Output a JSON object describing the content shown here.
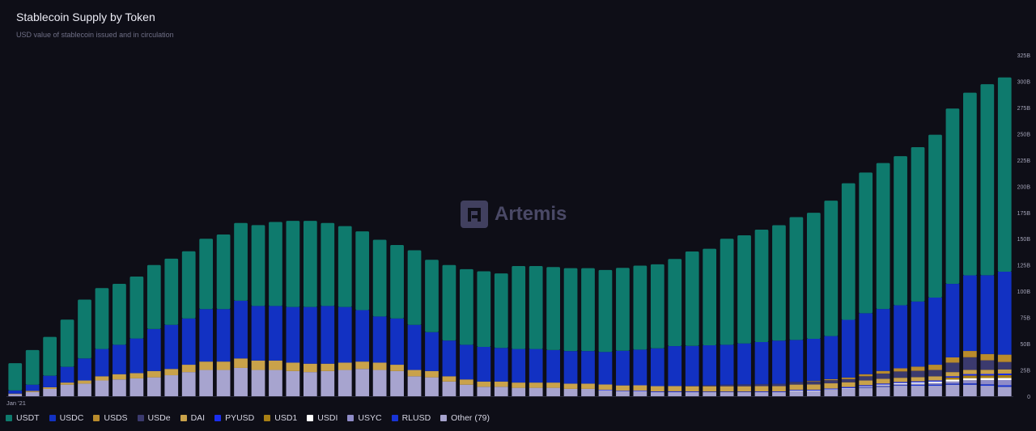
{
  "header": {
    "title": "Stablecoin Supply by Token",
    "subtitle": "USD value of stablecoin issued and in circulation"
  },
  "watermark": {
    "text": "Artemis"
  },
  "chart_data": {
    "type": "bar",
    "stacked": true,
    "ylim": [
      0,
      325
    ],
    "yunit": "B",
    "yticks": [
      "0",
      "25B",
      "50B",
      "75B",
      "100B",
      "125B",
      "150B",
      "175B",
      "200B",
      "225B",
      "250B",
      "275B",
      "300B",
      "325B"
    ],
    "ytick_values": [
      0,
      25,
      50,
      75,
      100,
      125,
      150,
      175,
      200,
      225,
      250,
      275,
      300,
      325
    ],
    "first_x_label": "Jan '21",
    "num_bars": 58,
    "grid": false,
    "legend_position": "bottom",
    "series": [
      {
        "name": "Other (79)",
        "color": "#a7a4cf",
        "values": [
          2,
          4,
          7,
          11,
          12,
          15,
          16,
          17,
          18,
          20,
          23,
          25,
          25,
          27,
          25,
          25,
          24,
          23,
          24,
          25,
          26,
          25,
          24,
          19,
          18,
          14,
          11,
          9,
          9,
          8,
          8,
          8,
          7,
          7,
          6,
          5,
          5,
          4,
          4,
          4,
          4,
          4,
          4,
          4,
          4,
          5,
          5,
          6,
          7,
          8,
          9,
          10,
          10,
          10,
          11,
          11,
          10,
          9
        ]
      },
      {
        "name": "RLUSD",
        "color": "#1834d6",
        "values": [
          0,
          0,
          0,
          0,
          0,
          0,
          0,
          0,
          0,
          0,
          0,
          0,
          0,
          0,
          0,
          0,
          0,
          0,
          0,
          0,
          0,
          0,
          0,
          0,
          0,
          0,
          0,
          0,
          0,
          0,
          0,
          0,
          0,
          0,
          0,
          0,
          0,
          0,
          0,
          0,
          0,
          0,
          0,
          0,
          0,
          0,
          0,
          0,
          0,
          0.3,
          0.5,
          0.6,
          0.8,
          1,
          1,
          1.2,
          1.3,
          1.4
        ]
      },
      {
        "name": "USYC",
        "color": "#8f8cc8",
        "values": [
          0,
          0,
          0,
          0,
          0,
          0,
          0,
          0,
          0,
          0,
          0,
          0,
          0,
          0,
          0,
          0,
          0,
          0,
          0,
          0,
          0,
          0,
          0,
          0,
          0,
          0,
          0,
          0,
          0,
          0,
          0,
          0,
          0,
          0,
          0,
          0,
          0,
          0,
          0,
          0,
          0,
          0,
          0,
          0,
          0,
          0,
          0,
          0,
          0.3,
          0.6,
          0.8,
          1,
          1.2,
          1.5,
          2,
          3,
          4,
          5
        ]
      },
      {
        "name": "USDI",
        "color": "#ffffff",
        "values": [
          0,
          0,
          0,
          0,
          0,
          0,
          0,
          0,
          0,
          0,
          0,
          0,
          0,
          0,
          0,
          0,
          0,
          0,
          0,
          0,
          0,
          0,
          0,
          0,
          0,
          0,
          0,
          0,
          0,
          0,
          0,
          0,
          0,
          0,
          0,
          0,
          0,
          0,
          0,
          0,
          0,
          0,
          0,
          0,
          0,
          0.5,
          0.5,
          0.5,
          0.5,
          0.6,
          0.8,
          1,
          1.2,
          1.5,
          1.8,
          2,
          2,
          2
        ]
      },
      {
        "name": "USD1",
        "color": "#a87f14",
        "values": [
          0,
          0,
          0,
          0,
          0,
          0,
          0,
          0,
          0,
          0,
          0,
          0,
          0,
          0,
          0,
          0,
          0,
          0,
          0,
          0,
          0,
          0,
          0,
          0,
          0,
          0,
          0,
          0,
          0,
          0,
          0,
          0,
          0,
          0,
          0,
          0,
          0,
          0,
          0,
          0,
          0,
          0,
          0,
          0,
          0,
          0,
          0,
          0,
          0,
          0,
          0,
          0,
          0,
          0,
          2,
          2.5,
          2.5,
          2.7
        ]
      },
      {
        "name": "PYUSD",
        "color": "#1a2ef0",
        "values": [
          0,
          0,
          0,
          0,
          0,
          0,
          0,
          0,
          0,
          0,
          0,
          0,
          0,
          0,
          0,
          0,
          0,
          0,
          0,
          0,
          0,
          0,
          0,
          0,
          0,
          0,
          0,
          0,
          0,
          0,
          0,
          0,
          0,
          0,
          0.2,
          0.3,
          0.4,
          0.6,
          0.7,
          0.6,
          0.5,
          0.5,
          0.5,
          0.6,
          0.6,
          0.6,
          0.7,
          0.8,
          1,
          1,
          1,
          1,
          1,
          1,
          1.2,
          1.4,
          1.4,
          1.5
        ]
      },
      {
        "name": "DAI",
        "color": "#c9a24a",
        "values": [
          0.5,
          1,
          1.5,
          2,
          3,
          4,
          5,
          5,
          6,
          6,
          7,
          8,
          8,
          9,
          9,
          9,
          8,
          8,
          7,
          7,
          7,
          7,
          6,
          6,
          6,
          5,
          5,
          5,
          5,
          5,
          5,
          5,
          5,
          5,
          5,
          5,
          5,
          5,
          5,
          5,
          5,
          5,
          5,
          5,
          5,
          5,
          5,
          5,
          4.5,
          4.5,
          4.5,
          4,
          4,
          4,
          4,
          4,
          4,
          4
        ]
      },
      {
        "name": "USDe",
        "color": "#3b3a6e",
        "values": [
          0,
          0,
          0,
          0,
          0,
          0,
          0,
          0,
          0,
          0,
          0,
          0,
          0,
          0,
          0,
          0,
          0,
          0,
          0,
          0,
          0,
          0,
          0,
          0,
          0,
          0,
          0,
          0,
          0,
          0,
          0,
          0,
          0,
          0,
          0,
          0,
          0,
          0,
          0,
          0.3,
          1,
          1.5,
          1.8,
          2,
          2.3,
          2.5,
          3,
          3,
          3,
          4,
          5,
          6,
          6,
          6,
          9,
          12,
          9,
          7
        ]
      },
      {
        "name": "USDS",
        "color": "#b98b2c",
        "values": [
          0,
          0,
          0,
          0,
          0,
          0,
          0,
          0,
          0,
          0,
          0,
          0,
          0,
          0,
          0,
          0,
          0,
          0,
          0,
          0,
          0,
          0,
          0,
          0,
          0,
          0,
          0,
          0,
          0,
          0,
          0,
          0,
          0,
          0,
          0,
          0,
          0,
          0,
          0,
          0,
          0,
          0,
          0,
          0,
          0,
          0,
          0.5,
          1,
          1.5,
          2,
          2.5,
          3,
          4,
          5,
          5,
          6,
          6,
          7
        ]
      },
      {
        "name": "USDC",
        "color": "#1231c2",
        "values": [
          3,
          6,
          11,
          15,
          21,
          26,
          28,
          33,
          40,
          42,
          44,
          50,
          50,
          55,
          52,
          52,
          53,
          54,
          55,
          53,
          49,
          44,
          44,
          43,
          37,
          34,
          33,
          33,
          32,
          32,
          32,
          31,
          31,
          31,
          31,
          33,
          34,
          36,
          38,
          38,
          38,
          38,
          39,
          40,
          41,
          40,
          40,
          41,
          55,
          58,
          59,
          60,
          62,
          64,
          70,
          72,
          75,
          79
        ]
      },
      {
        "name": "USDT",
        "color": "#0e7a6d",
        "values": [
          26,
          33,
          37,
          45,
          56,
          58,
          58,
          59,
          61,
          63,
          64,
          67,
          71,
          74,
          77,
          80,
          82,
          82,
          79,
          77,
          75,
          73,
          70,
          71,
          69,
          72,
          72,
          72,
          71,
          79,
          79,
          79,
          79,
          79,
          78,
          79,
          80,
          80,
          83,
          90,
          92,
          101,
          103,
          107,
          110,
          117,
          120,
          129,
          130,
          134,
          139,
          142,
          147,
          155,
          167,
          174,
          182,
          185
        ]
      }
    ]
  },
  "legend": {
    "items": [
      {
        "label": "USDT",
        "color": "#0e7a6d"
      },
      {
        "label": "USDC",
        "color": "#1231c2"
      },
      {
        "label": "USDS",
        "color": "#b98b2c"
      },
      {
        "label": "USDe",
        "color": "#3b3a6e"
      },
      {
        "label": "DAI",
        "color": "#c9a24a"
      },
      {
        "label": "PYUSD",
        "color": "#1a2ef0"
      },
      {
        "label": "USD1",
        "color": "#a87f14"
      },
      {
        "label": "USDI",
        "color": "#ffffff"
      },
      {
        "label": "USYC",
        "color": "#8f8cc8"
      },
      {
        "label": "RLUSD",
        "color": "#1834d6"
      },
      {
        "label": "Other (79)",
        "color": "#a7a4cf"
      }
    ]
  }
}
